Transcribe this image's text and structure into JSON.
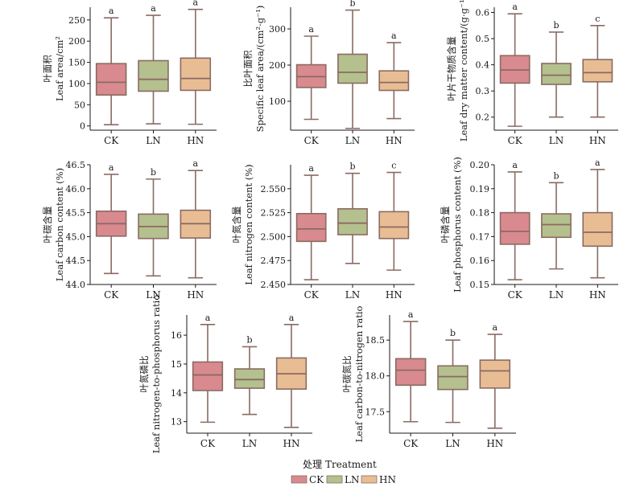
{
  "figure": {
    "xlabel": "处理 Treatment",
    "legend": [
      {
        "name": "CK",
        "color": "#d98a8f"
      },
      {
        "name": "LN",
        "color": "#b4c08e"
      },
      {
        "name": "HN",
        "color": "#e9bd94"
      }
    ],
    "box_edge_color": "#8a6b62"
  },
  "chart_data": [
    {
      "type": "box",
      "ylabel_cn": "叶面积",
      "ylabel_en": "Leaf area/cm²",
      "categories": [
        "CK",
        "LN",
        "HN"
      ],
      "ylim": [
        -10,
        280
      ],
      "yticks": [
        0,
        50,
        100,
        150,
        200,
        250
      ],
      "tick_decimals": 0,
      "boxes": [
        {
          "min": 3,
          "q1": 73,
          "median": 103,
          "q3": 147,
          "max": 255
        },
        {
          "min": 5,
          "q1": 82,
          "median": 110,
          "q3": 154,
          "max": 261
        },
        {
          "min": 4,
          "q1": 84,
          "median": 112,
          "q3": 160,
          "max": 275
        }
      ],
      "letters": [
        "a",
        "a",
        "a"
      ]
    },
    {
      "type": "box",
      "ylabel_cn": "比叶面积",
      "ylabel_en": "Specific leaf area/(cm²·g⁻¹)",
      "categories": [
        "CK",
        "LN",
        "HN"
      ],
      "ylim": [
        20,
        360
      ],
      "yticks": [
        100,
        200,
        300
      ],
      "tick_decimals": 0,
      "boxes": [
        {
          "min": 50,
          "q1": 138,
          "median": 168,
          "q3": 201,
          "max": 280
        },
        {
          "min": 25,
          "q1": 150,
          "median": 180,
          "q3": 230,
          "max": 352
        },
        {
          "min": 52,
          "q1": 130,
          "median": 152,
          "q3": 184,
          "max": 262
        }
      ],
      "letters": [
        "a",
        "b",
        "a"
      ]
    },
    {
      "type": "box",
      "ylabel_cn": "叶片干物质含量",
      "ylabel_en": "Leaf dry matter content/(g·g⁻¹)",
      "categories": [
        "CK",
        "LN",
        "HN"
      ],
      "ylim": [
        0.15,
        0.62
      ],
      "yticks": [
        0.2,
        0.3,
        0.4,
        0.5,
        0.6
      ],
      "tick_decimals": 1,
      "boxes": [
        {
          "min": 0.165,
          "q1": 0.33,
          "median": 0.38,
          "q3": 0.435,
          "max": 0.595
        },
        {
          "min": 0.2,
          "q1": 0.325,
          "median": 0.36,
          "q3": 0.405,
          "max": 0.525
        },
        {
          "min": 0.2,
          "q1": 0.335,
          "median": 0.37,
          "q3": 0.42,
          "max": 0.55
        }
      ],
      "letters": [
        "a",
        "b",
        "c"
      ]
    },
    {
      "type": "box",
      "ylabel_cn": "叶碳含量",
      "ylabel_en": "Leaf carbon content (%)",
      "categories": [
        "CK",
        "LN",
        "HN"
      ],
      "ylim": [
        44.0,
        46.5
      ],
      "yticks": [
        44.0,
        44.5,
        45.0,
        45.5,
        46.0,
        46.5
      ],
      "tick_decimals": 1,
      "boxes": [
        {
          "min": 44.23,
          "q1": 45.01,
          "median": 45.27,
          "q3": 45.53,
          "max": 46.3
        },
        {
          "min": 44.18,
          "q1": 44.96,
          "median": 45.21,
          "q3": 45.47,
          "max": 46.2
        },
        {
          "min": 44.14,
          "q1": 44.97,
          "median": 45.27,
          "q3": 45.55,
          "max": 46.38
        }
      ],
      "letters": [
        "a",
        "b",
        "a"
      ]
    },
    {
      "type": "box",
      "ylabel_cn": "叶氮含量",
      "ylabel_en": "Leaf nitrogen content (%)",
      "categories": [
        "CK",
        "LN",
        "HN"
      ],
      "ylim": [
        2.45,
        2.575
      ],
      "yticks": [
        2.45,
        2.475,
        2.5,
        2.525,
        2.55
      ],
      "tick_decimals": 3,
      "boxes": [
        {
          "min": 2.455,
          "q1": 2.495,
          "median": 2.508,
          "q3": 2.524,
          "max": 2.564
        },
        {
          "min": 2.472,
          "q1": 2.502,
          "median": 2.514,
          "q3": 2.529,
          "max": 2.566
        },
        {
          "min": 2.465,
          "q1": 2.498,
          "median": 2.51,
          "q3": 2.526,
          "max": 2.567
        }
      ],
      "letters": [
        "a",
        "b",
        "c"
      ]
    },
    {
      "type": "box",
      "ylabel_cn": "叶磷含量",
      "ylabel_en": "Leaf phosphorus content (%)",
      "categories": [
        "CK",
        "LN",
        "HN"
      ],
      "ylim": [
        0.15,
        0.2
      ],
      "yticks": [
        0.15,
        0.16,
        0.17,
        0.18,
        0.19,
        0.2
      ],
      "tick_decimals": 2,
      "boxes": [
        {
          "min": 0.152,
          "q1": 0.1668,
          "median": 0.1722,
          "q3": 0.18,
          "max": 0.197
        },
        {
          "min": 0.1565,
          "q1": 0.1697,
          "median": 0.175,
          "q3": 0.1795,
          "max": 0.1925
        },
        {
          "min": 0.1528,
          "q1": 0.166,
          "median": 0.1718,
          "q3": 0.18,
          "max": 0.198
        }
      ],
      "letters": [
        "a",
        "b",
        "a"
      ]
    },
    {
      "type": "box",
      "ylabel_cn": "叶氮磷比",
      "ylabel_en": "Leaf nitrogen-to-phosphorus ratio",
      "categories": [
        "CK",
        "LN",
        "HN"
      ],
      "ylim": [
        12.6,
        16.7
      ],
      "yticks": [
        13,
        14,
        15,
        16
      ],
      "tick_decimals": 0,
      "boxes": [
        {
          "min": 12.98,
          "q1": 14.08,
          "median": 14.62,
          "q3": 15.07,
          "max": 16.37
        },
        {
          "min": 13.25,
          "q1": 14.16,
          "median": 14.46,
          "q3": 14.83,
          "max": 15.6
        },
        {
          "min": 12.8,
          "q1": 14.13,
          "median": 14.66,
          "q3": 15.21,
          "max": 16.37
        }
      ],
      "letters": [
        "a",
        "b",
        "a"
      ]
    },
    {
      "type": "box",
      "ylabel_cn": "叶碳氮比",
      "ylabel_en": "Leaf carbon-to-nitrogen ratio",
      "categories": [
        "CK",
        "LN",
        "HN"
      ],
      "ylim": [
        17.2,
        18.85
      ],
      "yticks": [
        17.5,
        18.0,
        18.5
      ],
      "tick_decimals": 1,
      "boxes": [
        {
          "min": 17.36,
          "q1": 17.87,
          "median": 18.08,
          "q3": 18.24,
          "max": 18.76
        },
        {
          "min": 17.35,
          "q1": 17.81,
          "median": 17.99,
          "q3": 18.14,
          "max": 18.5
        },
        {
          "min": 17.27,
          "q1": 17.83,
          "median": 18.07,
          "q3": 18.22,
          "max": 18.58
        }
      ],
      "letters": [
        "a",
        "b",
        "a"
      ]
    }
  ]
}
